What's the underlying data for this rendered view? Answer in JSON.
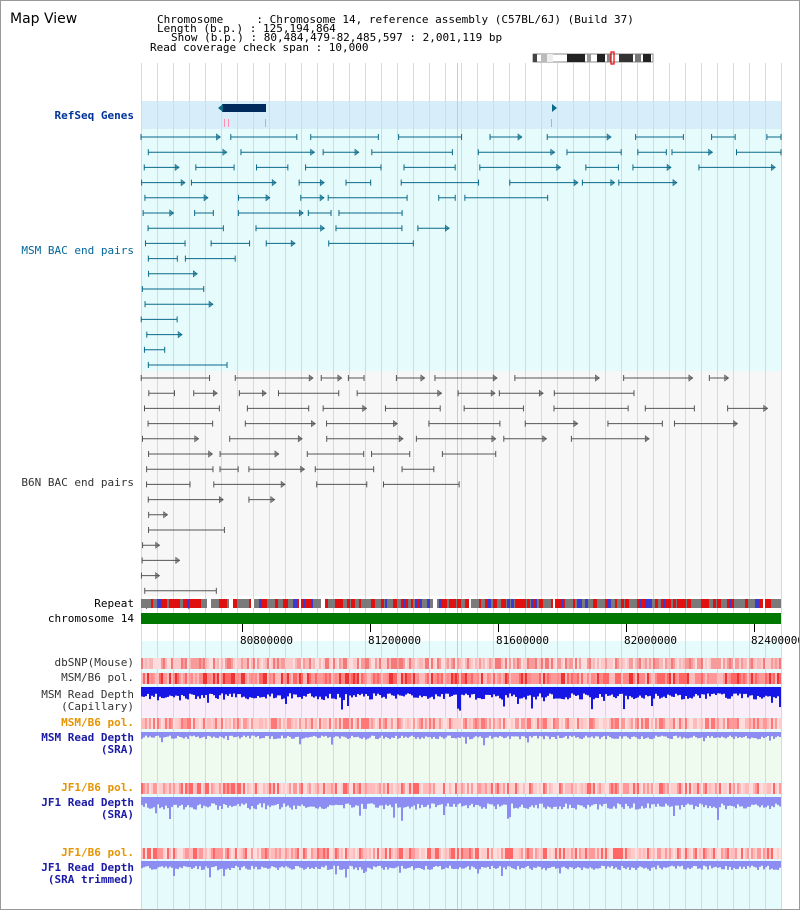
{
  "title": "Map View",
  "header": {
    "chromosome_line": "Chromosome     : Chromosome 14, reference assembly (C57BL/6J) (Build 37)",
    "length_line": "Length (b.p.) : 125,194,864",
    "show_line": "Show (b.p.) : 80,484,479-82,485,597 : 2,001,119 bp",
    "coverage_line": "Read coverage check span : 10,000"
  },
  "tracks": {
    "refseq": "RefSeq Genes",
    "msm_bac": "MSM BAC end pairs",
    "b6n_bac": "B6N BAC end pairs",
    "repeat": "Repeat",
    "chromosome": "chromosome 14",
    "dbsnp": "dbSNP(Mouse)",
    "msm_b6_pol": "MSM/B6 pol.",
    "msm_depth_cap_1": "MSM Read Depth",
    "msm_depth_cap_2": "(Capillary)",
    "msm_b6_pol_2": "MSM/B6 pol.",
    "msm_depth_sra_1": "MSM Read Depth",
    "msm_depth_sra_2": "(SRA)",
    "jf1_b6_pol": "JF1/B6 pol.",
    "jf1_depth_sra_1": "JF1 Read Depth",
    "jf1_depth_sra_2": "(SRA)",
    "jf1_b6_pol_2": "JF1/B6 pol.",
    "jf1_depth_trim_1": "JF1 Read Depth",
    "jf1_depth_trim_2": "(SRA trimmed)"
  },
  "axis": {
    "ticks": [
      "80800000",
      "81200000",
      "81600000",
      "82000000",
      "82400000"
    ],
    "tick_values": [
      80800000,
      81200000,
      81600000,
      82000000,
      82400000
    ],
    "range": [
      80484479,
      82485597
    ]
  },
  "colors": {
    "refseq_bg": "#d7eefa",
    "msm_bg": "#e6fbfb",
    "gray_bg": "#f7f7f7",
    "teal_feature": "#0b6a8a",
    "gray_feature": "#555555",
    "chromosome_bar": "#007700",
    "depth_cap": "#1515e6",
    "depth_sra": "#8c8cf2",
    "pol_red": "#e63030",
    "pink_bg": "#fbeefb",
    "green_bg": "#eefbee"
  }
}
